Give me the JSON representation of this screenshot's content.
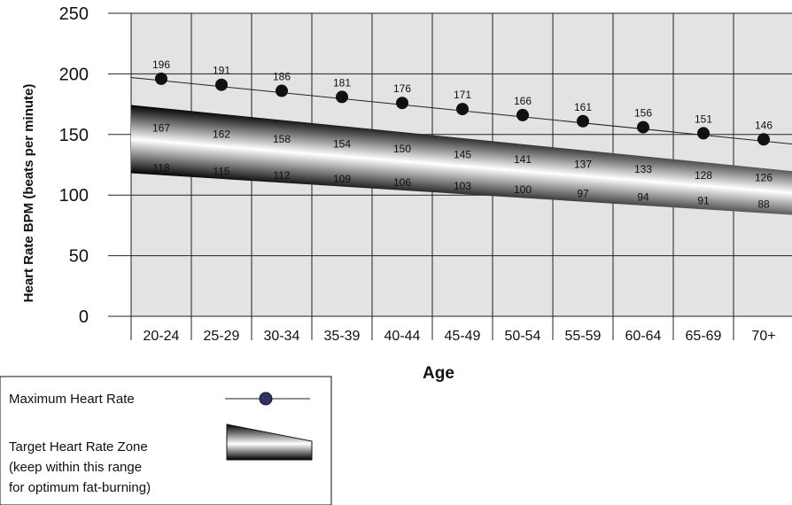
{
  "chart_data": {
    "type": "line",
    "xlabel": "Age",
    "ylabel": "Heart Rate BPM (beats per minute)",
    "ylim": [
      0,
      250
    ],
    "yticks": [
      "0",
      "50",
      "100",
      "150",
      "200",
      "250"
    ],
    "categories": [
      "20-24",
      "25-29",
      "30-34",
      "35-39",
      "40-44",
      "45-49",
      "50-54",
      "55-59",
      "60-64",
      "65-69",
      "70+"
    ],
    "grid": true,
    "legend_position": "bottom-left",
    "series": [
      {
        "name": "Maximum Heart Rate",
        "type": "line",
        "marker": "circle",
        "values": [
          196,
          191,
          186,
          181,
          176,
          171,
          166,
          161,
          156,
          151,
          146
        ]
      },
      {
        "name": "Target Heart Rate Zone",
        "type": "band",
        "upper": [
          167,
          162,
          158,
          154,
          150,
          145,
          141,
          137,
          133,
          128,
          126
        ],
        "lower": [
          118,
          115,
          112,
          109,
          106,
          103,
          100,
          97,
          94,
          91,
          88
        ]
      }
    ],
    "legend": [
      {
        "label": "Maximum Heart Rate"
      },
      {
        "label": "Target Heart Rate Zone\n(keep within this range\nfor optimum fat-burning)"
      }
    ],
    "colors": {
      "plot_bg": "#e3e3e3",
      "grid": "#222222",
      "marker": "#111111",
      "legend_marker": "#2e3566"
    }
  }
}
